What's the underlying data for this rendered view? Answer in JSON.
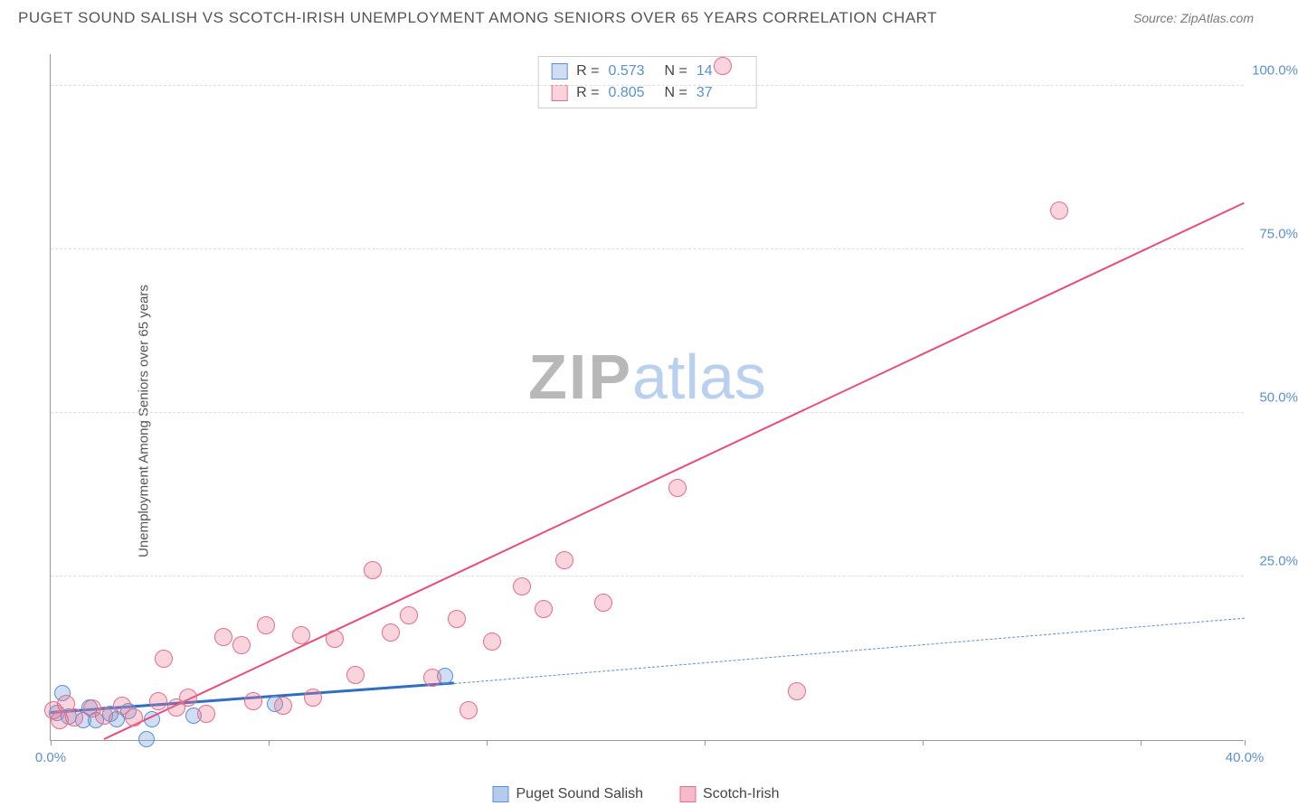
{
  "title": "PUGET SOUND SALISH VS SCOTCH-IRISH UNEMPLOYMENT AMONG SENIORS OVER 65 YEARS CORRELATION CHART",
  "source": "Source: ZipAtlas.com",
  "ylabel": "Unemployment Among Seniors over 65 years",
  "watermark_a": "ZIP",
  "watermark_b": "atlas",
  "chart": {
    "type": "scatter-with-regression",
    "background_color": "#ffffff",
    "grid_color": "#dddddd",
    "axis_color": "#999999",
    "tick_label_color": "#5a8fd6",
    "tick_fontsize": 15,
    "xlim": [
      0,
      40
    ],
    "ylim": [
      0,
      105
    ],
    "xticks": [
      0,
      7.3,
      14.6,
      21.9,
      29.2,
      36.5,
      40
    ],
    "xtick_labels": {
      "0": "0.0%",
      "40": "40.0%"
    },
    "yticks": [
      25,
      50,
      75,
      100
    ],
    "ytick_labels": {
      "25": "25.0%",
      "50": "50.0%",
      "75": "75.0%",
      "100": "100.0%"
    },
    "series": [
      {
        "name": "Puget Sound Salish",
        "color_fill": "rgba(120,160,220,0.35)",
        "color_stroke": "#5a8fd6",
        "marker_radius": 9,
        "R": "0.573",
        "N": "14",
        "regression": {
          "x1": 0,
          "y1": 4,
          "x2": 13.5,
          "y2": 8.5,
          "extend_x2": 40,
          "extend_y2": 18.5,
          "solid_color": "#2f6fc2",
          "solid_width": 3,
          "dash_color": "#5a8fd6",
          "dash_width": 1.5
        },
        "points": [
          {
            "x": 0.2,
            "y": 4.2
          },
          {
            "x": 0.4,
            "y": 7.2
          },
          {
            "x": 0.6,
            "y": 3.6
          },
          {
            "x": 1.1,
            "y": 3.0
          },
          {
            "x": 1.3,
            "y": 5.0
          },
          {
            "x": 1.5,
            "y": 3.0
          },
          {
            "x": 2.0,
            "y": 4.0
          },
          {
            "x": 2.2,
            "y": 3.2
          },
          {
            "x": 2.6,
            "y": 4.4
          },
          {
            "x": 3.2,
            "y": 0.2
          },
          {
            "x": 3.4,
            "y": 3.2
          },
          {
            "x": 4.8,
            "y": 3.8
          },
          {
            "x": 7.5,
            "y": 5.5
          },
          {
            "x": 13.2,
            "y": 9.8
          }
        ]
      },
      {
        "name": "Scotch-Irish",
        "color_fill": "rgba(235,120,150,0.32)",
        "color_stroke": "#e26e8c",
        "marker_radius": 10,
        "R": "0.805",
        "N": "37",
        "regression": {
          "x1": 1.8,
          "y1": 0,
          "x2": 40,
          "y2": 82,
          "solid_color": "#e84c7a",
          "solid_width": 2.5
        },
        "points": [
          {
            "x": 0.1,
            "y": 4.5
          },
          {
            "x": 0.3,
            "y": 3.0
          },
          {
            "x": 0.5,
            "y": 5.5
          },
          {
            "x": 0.8,
            "y": 3.5
          },
          {
            "x": 1.4,
            "y": 4.8
          },
          {
            "x": 1.8,
            "y": 3.8
          },
          {
            "x": 2.4,
            "y": 5.2
          },
          {
            "x": 2.8,
            "y": 3.4
          },
          {
            "x": 3.6,
            "y": 6.0
          },
          {
            "x": 3.8,
            "y": 12.5
          },
          {
            "x": 4.2,
            "y": 5.0
          },
          {
            "x": 4.6,
            "y": 6.5
          },
          {
            "x": 5.2,
            "y": 4.0
          },
          {
            "x": 5.8,
            "y": 15.8
          },
          {
            "x": 6.4,
            "y": 14.5
          },
          {
            "x": 6.8,
            "y": 6.0
          },
          {
            "x": 7.2,
            "y": 17.5
          },
          {
            "x": 7.8,
            "y": 5.2
          },
          {
            "x": 8.4,
            "y": 16.0
          },
          {
            "x": 8.8,
            "y": 6.5
          },
          {
            "x": 9.5,
            "y": 15.5
          },
          {
            "x": 10.2,
            "y": 10.0
          },
          {
            "x": 10.8,
            "y": 26.0
          },
          {
            "x": 11.4,
            "y": 16.5
          },
          {
            "x": 12.0,
            "y": 19.0
          },
          {
            "x": 12.8,
            "y": 9.5
          },
          {
            "x": 13.6,
            "y": 18.5
          },
          {
            "x": 14.0,
            "y": 4.5
          },
          {
            "x": 14.8,
            "y": 15.0
          },
          {
            "x": 15.8,
            "y": 23.5
          },
          {
            "x": 16.5,
            "y": 20.0
          },
          {
            "x": 17.2,
            "y": 27.5
          },
          {
            "x": 18.5,
            "y": 21.0
          },
          {
            "x": 21.0,
            "y": 38.5
          },
          {
            "x": 22.5,
            "y": 103.0
          },
          {
            "x": 25.0,
            "y": 7.5
          },
          {
            "x": 33.8,
            "y": 81.0
          }
        ]
      }
    ]
  },
  "legend": [
    {
      "label": "Puget Sound Salish",
      "fill": "rgba(120,160,220,0.55)",
      "stroke": "#5a8fd6"
    },
    {
      "label": "Scotch-Irish",
      "fill": "rgba(235,120,150,0.5)",
      "stroke": "#e26e8c"
    }
  ]
}
